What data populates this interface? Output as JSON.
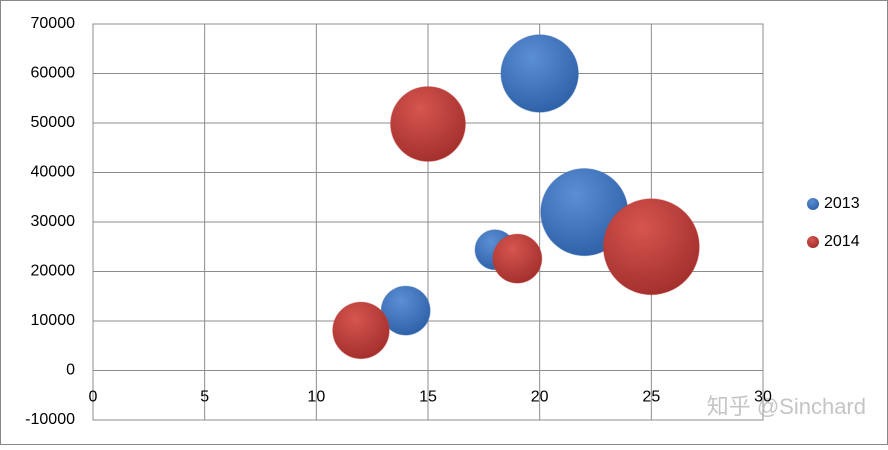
{
  "chart_data": {
    "type": "bubble",
    "series": [
      {
        "name": "2013",
        "color": "#3f74bc",
        "x": [
          20,
          22,
          18,
          14
        ],
        "values": [
          60000,
          32000,
          24400,
          12100
        ],
        "sizes": [
          15,
          19,
          4,
          6
        ]
      },
      {
        "name": "2014",
        "color": "#c0403d",
        "x": [
          15,
          25,
          19,
          12
        ],
        "values": [
          49800,
          25000,
          22600,
          8100
        ],
        "sizes": [
          14,
          23,
          6,
          8
        ]
      }
    ],
    "xlim": [
      0,
      30
    ],
    "xticks": [
      0,
      5,
      10,
      15,
      20,
      25,
      30
    ],
    "ylim": [
      -10000,
      70000
    ],
    "yticks": [
      -10000,
      0,
      10000,
      20000,
      30000,
      40000,
      50000,
      60000,
      70000
    ],
    "grid": true,
    "legend": "right",
    "watermark": "知乎 @Sinchard"
  }
}
